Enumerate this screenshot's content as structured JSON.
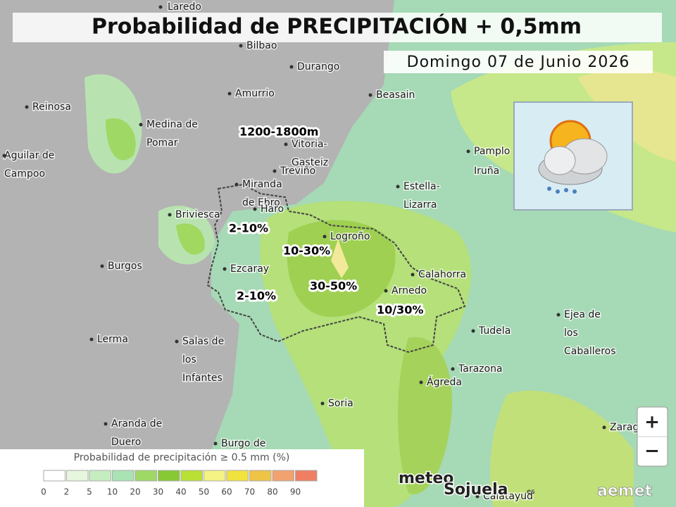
{
  "header": {
    "title": "Probabilidad de PRECIPITACIÓN + 0,5mm",
    "date": "Domingo 07 de Junio 2026"
  },
  "places": [
    [
      "Laredo"
    ],
    [
      "Bilbao"
    ],
    [
      "Durango"
    ],
    [
      "Amurrio"
    ],
    [
      "Beasain"
    ],
    [
      "Reinosa"
    ],
    [
      "Medina de",
      "Pomar"
    ],
    [
      "Vitoria-",
      "Gasteiz"
    ],
    [
      "Treviño"
    ],
    [
      "Pamplo"
    ],
    [
      "Iruña"
    ],
    [
      "Aguilar de",
      "Campoo"
    ],
    [
      "Miranda",
      "de Ebro"
    ],
    [
      "Haro"
    ],
    [
      "Estella-",
      "Lizarra"
    ],
    [
      "Briviesca"
    ],
    [
      "Logroño"
    ],
    [
      "Burgos"
    ],
    [
      "Ezcaray"
    ],
    [
      "Calahorra"
    ],
    [
      "Arnedo"
    ],
    [
      "Tudela"
    ],
    [
      "Ejea de",
      "los",
      "Caballeros"
    ],
    [
      "Lerma"
    ],
    [
      "Salas de",
      "los",
      "Infantes"
    ],
    [
      "Tarazona"
    ],
    [
      "Ágreda"
    ],
    [
      "Soria"
    ],
    [
      "Aranda de",
      "Duero"
    ],
    [
      "Burgo de"
    ],
    [
      "Zarag"
    ],
    [
      "Calatayud"
    ]
  ],
  "ranges": [
    "1200-1800m",
    "2-10%",
    "10-30%",
    "30-50%",
    "2-10%",
    "10/30%"
  ],
  "legend": {
    "title": "Probabilidad de precipitación ≥ 0.5 mm (%)",
    "ticks": [
      0,
      2,
      5,
      10,
      20,
      30,
      40,
      50,
      60,
      70,
      80,
      90
    ],
    "colors": [
      "#ffffff",
      "#e6f7de",
      "#c6edc0",
      "#a9e3b4",
      "#9fd865",
      "#87c934",
      "#b9e034",
      "#f4f383",
      "#f1e33f",
      "#eec346",
      "#f2a26e",
      "#ef7e62"
    ]
  },
  "controls": {
    "zoom_in": "+",
    "zoom_out": "−"
  },
  "logos": {
    "meteo": "meteo",
    "sojuela": "Sojuela",
    "es": ".es",
    "aemet": "aemet"
  }
}
